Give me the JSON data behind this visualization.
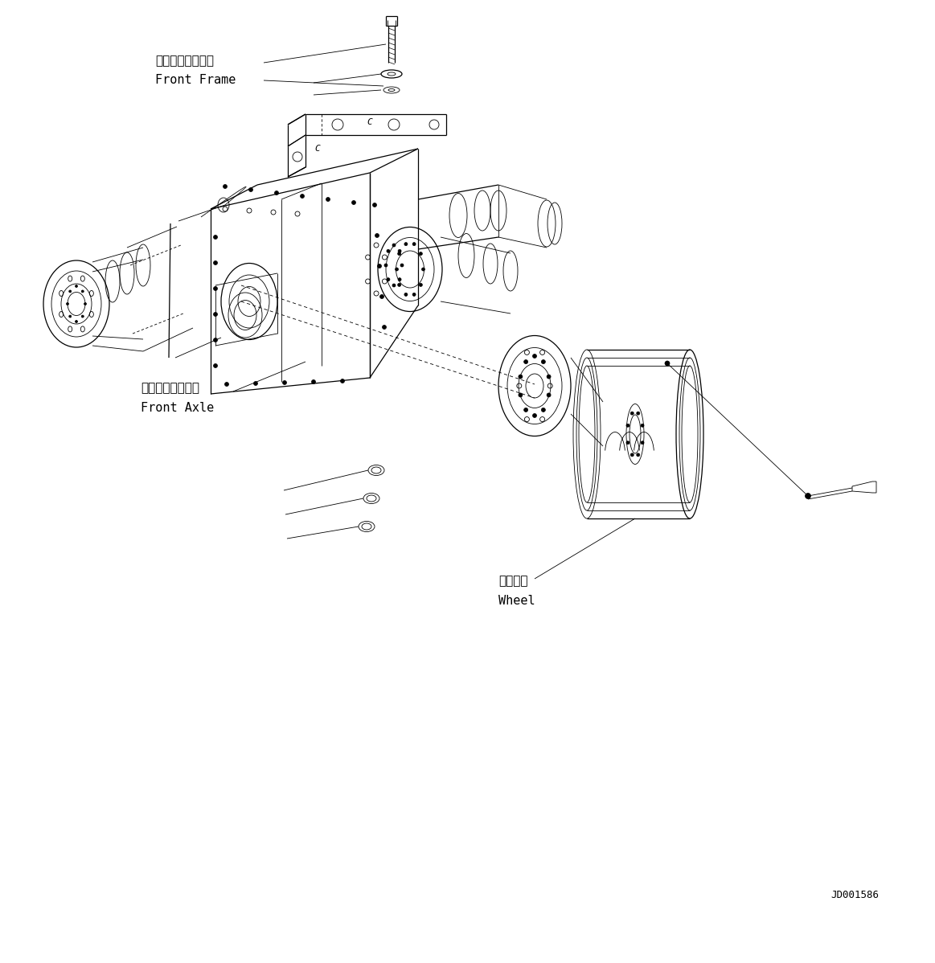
{
  "bg_color": "#ffffff",
  "line_color": "#000000",
  "fig_width": 11.63,
  "fig_height": 11.98,
  "dpi": 100,
  "doc_id": "JD001586",
  "labels": {
    "front_frame_ja": "フロントフレーム",
    "front_frame_en": "Front Frame",
    "front_axle_ja": "フロントアクスル",
    "front_axle_en": "Front Axle",
    "wheel_ja": "ホイール",
    "wheel_en": "Wheel"
  }
}
